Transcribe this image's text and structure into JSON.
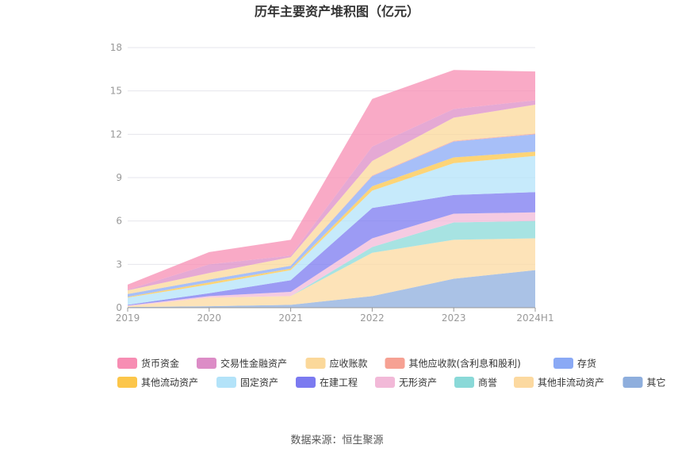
{
  "chart_data": {
    "type": "area",
    "stacked": true,
    "title": "历年主要资产堆积图（亿元）",
    "categories": [
      "2019",
      "2020",
      "2021",
      "2022",
      "2023",
      "2024H1"
    ],
    "ylim": [
      0,
      18
    ],
    "yticks": [
      "0",
      "3",
      "6",
      "9",
      "12",
      "15",
      "18"
    ],
    "grid": true,
    "legend_position": "bottom",
    "series": [
      {
        "name": "其它",
        "color": "#8eaedd",
        "values": [
          0.05,
          0.1,
          0.2,
          0.8,
          2.0,
          2.6
        ]
      },
      {
        "name": "其他非流动资产",
        "color": "#fcd9a0",
        "values": [
          0.05,
          0.6,
          0.6,
          3.0,
          2.7,
          2.2
        ]
      },
      {
        "name": "商誉",
        "color": "#8ad9d8",
        "values": [
          0.0,
          0.0,
          0.0,
          0.4,
          1.2,
          1.2
        ]
      },
      {
        "name": "无形资产",
        "color": "#f2b9d8",
        "values": [
          0.05,
          0.1,
          0.3,
          0.6,
          0.6,
          0.6
        ]
      },
      {
        "name": "在建工程",
        "color": "#7b7af0",
        "values": [
          0.05,
          0.2,
          0.8,
          2.1,
          1.3,
          1.4
        ]
      },
      {
        "name": "固定资产",
        "color": "#b3e3f9",
        "values": [
          0.5,
          0.6,
          0.7,
          1.2,
          2.2,
          2.5
        ]
      },
      {
        "name": "其他流动资产",
        "color": "#fcc64a",
        "values": [
          0.05,
          0.15,
          0.1,
          0.3,
          0.4,
          0.3
        ]
      },
      {
        "name": "存货",
        "color": "#8aa9f5",
        "values": [
          0.2,
          0.2,
          0.2,
          0.7,
          1.1,
          1.2
        ]
      },
      {
        "name": "其他应收款(含利息和股利)",
        "color": "#f6a193",
        "values": [
          0.0,
          0.0,
          0.0,
          0.05,
          0.05,
          0.05
        ]
      },
      {
        "name": "应收账款",
        "color": "#fbd89a",
        "values": [
          0.25,
          0.45,
          0.6,
          1.0,
          1.6,
          2.0
        ]
      },
      {
        "name": "交易性金融资产",
        "color": "#dc8cc6",
        "values": [
          0.05,
          0.6,
          0.1,
          1.0,
          0.6,
          0.3
        ]
      },
      {
        "name": "货币资金",
        "color": "#f78db3",
        "values": [
          0.35,
          0.85,
          1.1,
          3.3,
          2.7,
          2.0
        ]
      }
    ]
  },
  "legend_order": [
    "货币资金",
    "交易性金融资产",
    "应收账款",
    "其他应收款(含利息和股利)",
    "存货",
    "其他流动资产",
    "固定资产",
    "在建工程",
    "无形资产",
    "商誉",
    "其他非流动资产",
    "其它"
  ],
  "source_label": "数据来源：恒生聚源"
}
